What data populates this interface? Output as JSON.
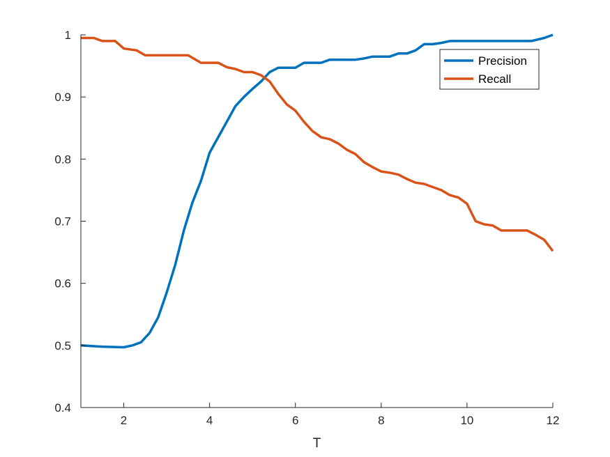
{
  "chart_data": {
    "type": "line",
    "xlabel": "T",
    "ylabel": "",
    "xlim": [
      1,
      12
    ],
    "ylim": [
      0.4,
      1.0
    ],
    "xticks": [
      2,
      4,
      6,
      8,
      10,
      12
    ],
    "yticks": [
      0.4,
      0.5,
      0.6,
      0.7,
      0.8,
      0.9,
      1.0
    ],
    "xtick_labels": [
      "2",
      "4",
      "6",
      "8",
      "10",
      "12"
    ],
    "ytick_labels": [
      "0.4",
      "0.5",
      "0.6",
      "0.7",
      "0.8",
      "0.9",
      "1"
    ],
    "grid": false,
    "legend_position": "top-right",
    "series": [
      {
        "name": "Precision",
        "color": "#0072BD",
        "x": [
          1.0,
          1.5,
          2.0,
          2.2,
          2.4,
          2.6,
          2.8,
          3.0,
          3.2,
          3.4,
          3.6,
          3.8,
          4.0,
          4.2,
          4.4,
          4.6,
          4.8,
          5.0,
          5.2,
          5.4,
          5.6,
          5.8,
          6.0,
          6.2,
          6.4,
          6.6,
          6.8,
          7.0,
          7.2,
          7.4,
          7.6,
          7.8,
          8.0,
          8.2,
          8.4,
          8.6,
          8.8,
          9.0,
          9.2,
          9.4,
          9.6,
          9.8,
          10.0,
          10.5,
          11.0,
          11.5,
          11.8,
          12.0
        ],
        "y": [
          0.5,
          0.498,
          0.497,
          0.5,
          0.505,
          0.52,
          0.545,
          0.585,
          0.63,
          0.685,
          0.73,
          0.765,
          0.81,
          0.835,
          0.86,
          0.885,
          0.9,
          0.913,
          0.925,
          0.94,
          0.947,
          0.947,
          0.947,
          0.955,
          0.955,
          0.955,
          0.96,
          0.96,
          0.96,
          0.96,
          0.962,
          0.965,
          0.965,
          0.965,
          0.97,
          0.97,
          0.975,
          0.985,
          0.985,
          0.987,
          0.99,
          0.99,
          0.99,
          0.99,
          0.99,
          0.99,
          0.995,
          1.0
        ]
      },
      {
        "name": "Recall",
        "color": "#D95319",
        "x": [
          1.0,
          1.3,
          1.5,
          1.8,
          2.0,
          2.3,
          2.5,
          3.0,
          3.5,
          3.8,
          4.0,
          4.2,
          4.4,
          4.6,
          4.8,
          5.0,
          5.2,
          5.4,
          5.6,
          5.8,
          6.0,
          6.2,
          6.4,
          6.6,
          6.8,
          7.0,
          7.2,
          7.4,
          7.6,
          7.8,
          8.0,
          8.2,
          8.4,
          8.6,
          8.8,
          9.0,
          9.2,
          9.4,
          9.6,
          9.8,
          10.0,
          10.2,
          10.4,
          10.6,
          10.8,
          11.0,
          11.2,
          11.4,
          11.6,
          11.8,
          12.0
        ],
        "y": [
          0.995,
          0.995,
          0.99,
          0.99,
          0.978,
          0.975,
          0.967,
          0.967,
          0.967,
          0.955,
          0.955,
          0.955,
          0.948,
          0.945,
          0.94,
          0.94,
          0.935,
          0.925,
          0.905,
          0.888,
          0.878,
          0.86,
          0.845,
          0.835,
          0.832,
          0.825,
          0.815,
          0.808,
          0.795,
          0.787,
          0.78,
          0.778,
          0.775,
          0.768,
          0.762,
          0.76,
          0.755,
          0.75,
          0.742,
          0.738,
          0.728,
          0.7,
          0.695,
          0.693,
          0.685,
          0.685,
          0.685,
          0.685,
          0.678,
          0.67,
          0.652
        ]
      }
    ]
  }
}
